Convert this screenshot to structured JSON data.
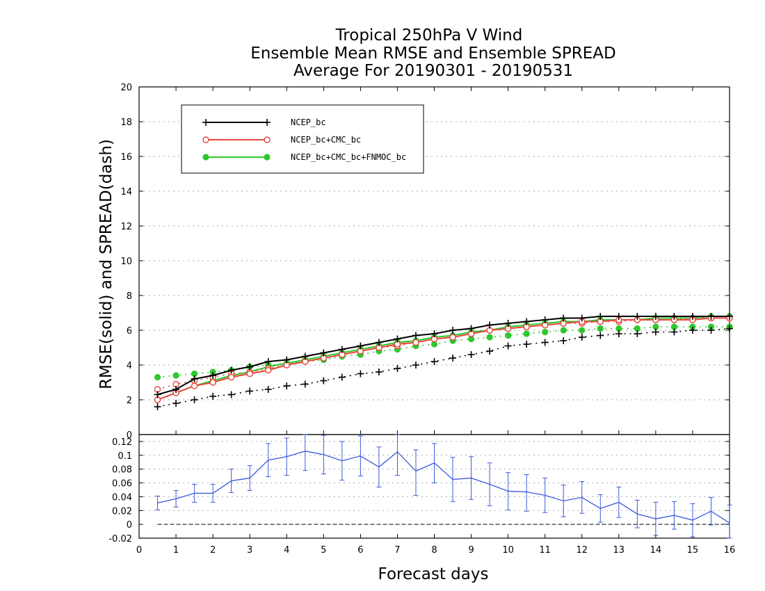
{
  "chart_data": [
    {
      "type": "line",
      "title_lines": [
        "Tropical 250hPa V Wind",
        "Ensemble Mean RMSE and Ensemble SPREAD",
        "Average For 20190301 - 20190531"
      ],
      "xlabel": "Forecast days",
      "ylabel": "RMSE(solid) and SPREAD(dash)",
      "xlim": [
        0,
        16
      ],
      "ylim": [
        0,
        20
      ],
      "x_ticks": [
        0,
        1,
        2,
        3,
        4,
        5,
        6,
        7,
        8,
        9,
        10,
        11,
        12,
        13,
        14,
        15,
        16
      ],
      "y_ticks": [
        2,
        4,
        6,
        8,
        10,
        12,
        14,
        16,
        18,
        20
      ],
      "grid": true,
      "legend_position": "top-left",
      "x": [
        0.5,
        1,
        1.5,
        2,
        2.5,
        3,
        3.5,
        4,
        4.5,
        5,
        5.5,
        6,
        6.5,
        7,
        7.5,
        8,
        8.5,
        9,
        9.5,
        10,
        10.5,
        11,
        11.5,
        12,
        12.5,
        13,
        13.5,
        14,
        14.5,
        15,
        15.5,
        16
      ],
      "series": [
        {
          "name": "NCEP_bc",
          "color": "#000000",
          "marker": "plus",
          "rmse": [
            2.3,
            2.6,
            3.2,
            3.4,
            3.7,
            3.9,
            4.2,
            4.3,
            4.5,
            4.7,
            4.9,
            5.1,
            5.3,
            5.5,
            5.7,
            5.8,
            6.0,
            6.1,
            6.3,
            6.4,
            6.5,
            6.6,
            6.7,
            6.7,
            6.8,
            6.8,
            6.8,
            6.8,
            6.8,
            6.8,
            6.8,
            6.8
          ],
          "spread": [
            1.6,
            1.8,
            2.0,
            2.2,
            2.3,
            2.5,
            2.6,
            2.8,
            2.9,
            3.1,
            3.3,
            3.5,
            3.6,
            3.8,
            4.0,
            4.2,
            4.4,
            4.6,
            4.8,
            5.1,
            5.2,
            5.3,
            5.4,
            5.6,
            5.7,
            5.8,
            5.8,
            5.9,
            5.9,
            6.0,
            6.0,
            6.1
          ]
        },
        {
          "name": "NCEP_bc+CMC_bc",
          "color": "#e8463c",
          "marker": "open-circle",
          "rmse": [
            2.0,
            2.4,
            2.8,
            3.0,
            3.3,
            3.5,
            3.7,
            4.0,
            4.2,
            4.4,
            4.6,
            4.8,
            5.0,
            5.2,
            5.3,
            5.5,
            5.6,
            5.8,
            6.0,
            6.1,
            6.2,
            6.3,
            6.4,
            6.5,
            6.5,
            6.6,
            6.6,
            6.6,
            6.6,
            6.6,
            6.7,
            6.7
          ],
          "spread": [
            2.6,
            2.9,
            3.1,
            3.3,
            3.5,
            3.6,
            3.8,
            4.0,
            4.2,
            4.4,
            4.6,
            4.8,
            5.0,
            5.1,
            5.3,
            5.5,
            5.6,
            5.8,
            6.0,
            6.1,
            6.2,
            6.3,
            6.4,
            6.4,
            6.5,
            6.5,
            6.6,
            6.6,
            6.6,
            6.7,
            6.7,
            6.7
          ]
        },
        {
          "name": "NCEP_bc+CMC_bc+FNMOC_bc",
          "color": "#2ec82e",
          "marker": "filled-circle",
          "rmse": [
            2.0,
            2.4,
            2.8,
            3.1,
            3.4,
            3.6,
            3.9,
            4.1,
            4.3,
            4.5,
            4.7,
            4.9,
            5.1,
            5.3,
            5.4,
            5.6,
            5.7,
            5.9,
            6.0,
            6.2,
            6.3,
            6.4,
            6.5,
            6.5,
            6.6,
            6.6,
            6.6,
            6.7,
            6.7,
            6.7,
            6.8,
            6.8
          ],
          "spread": [
            3.3,
            3.4,
            3.5,
            3.6,
            3.7,
            3.9,
            4.0,
            4.1,
            4.2,
            4.3,
            4.5,
            4.6,
            4.8,
            4.9,
            5.1,
            5.2,
            5.4,
            5.5,
            5.6,
            5.7,
            5.8,
            5.9,
            6.0,
            6.0,
            6.1,
            6.1,
            6.1,
            6.2,
            6.2,
            6.2,
            6.2,
            6.2
          ]
        }
      ]
    },
    {
      "type": "line",
      "xlabel": "Forecast days",
      "xlim": [
        0,
        16
      ],
      "ylim": [
        -0.02,
        0.13
      ],
      "y_tick_labels": [
        "-0.02",
        "0",
        "0.02",
        "0.04",
        "0.06",
        "0.08",
        "0.1",
        "0.12"
      ],
      "y_tick_values": [
        -0.02,
        0,
        0.02,
        0.04,
        0.06,
        0.08,
        0.1,
        0.12
      ],
      "grid": true,
      "color": "#3c5adc",
      "error_bars": true,
      "zero_line": true,
      "x": [
        0.5,
        1,
        1.5,
        2,
        2.5,
        3,
        3.5,
        4,
        4.5,
        5,
        5.5,
        6,
        6.5,
        7,
        7.5,
        8,
        8.5,
        9,
        9.5,
        10,
        10.5,
        11,
        11.5,
        12,
        12.5,
        13,
        13.5,
        14,
        14.5,
        15,
        15.5,
        16
      ],
      "values": [
        0.031,
        0.037,
        0.045,
        0.045,
        0.063,
        0.067,
        0.093,
        0.098,
        0.106,
        0.101,
        0.092,
        0.099,
        0.083,
        0.105,
        0.077,
        0.089,
        0.065,
        0.067,
        0.058,
        0.048,
        0.047,
        0.042,
        0.034,
        0.039,
        0.023,
        0.032,
        0.015,
        0.008,
        0.013,
        0.006,
        0.019,
        0.002
      ],
      "err_low": [
        0.021,
        0.025,
        0.032,
        0.032,
        0.046,
        0.049,
        0.069,
        0.071,
        0.078,
        0.073,
        0.064,
        0.07,
        0.054,
        0.071,
        0.042,
        0.06,
        0.033,
        0.036,
        0.027,
        0.021,
        0.019,
        0.017,
        0.011,
        0.016,
        0.003,
        0.01,
        -0.005,
        -0.016,
        -0.007,
        -0.018,
        -0.001,
        -0.024
      ],
      "err_high": [
        0.041,
        0.049,
        0.058,
        0.058,
        0.08,
        0.085,
        0.117,
        0.125,
        0.132,
        0.129,
        0.12,
        0.128,
        0.112,
        0.135,
        0.108,
        0.117,
        0.097,
        0.098,
        0.089,
        0.075,
        0.072,
        0.067,
        0.057,
        0.062,
        0.043,
        0.054,
        0.035,
        0.032,
        0.033,
        0.03,
        0.039,
        0.028
      ]
    }
  ]
}
